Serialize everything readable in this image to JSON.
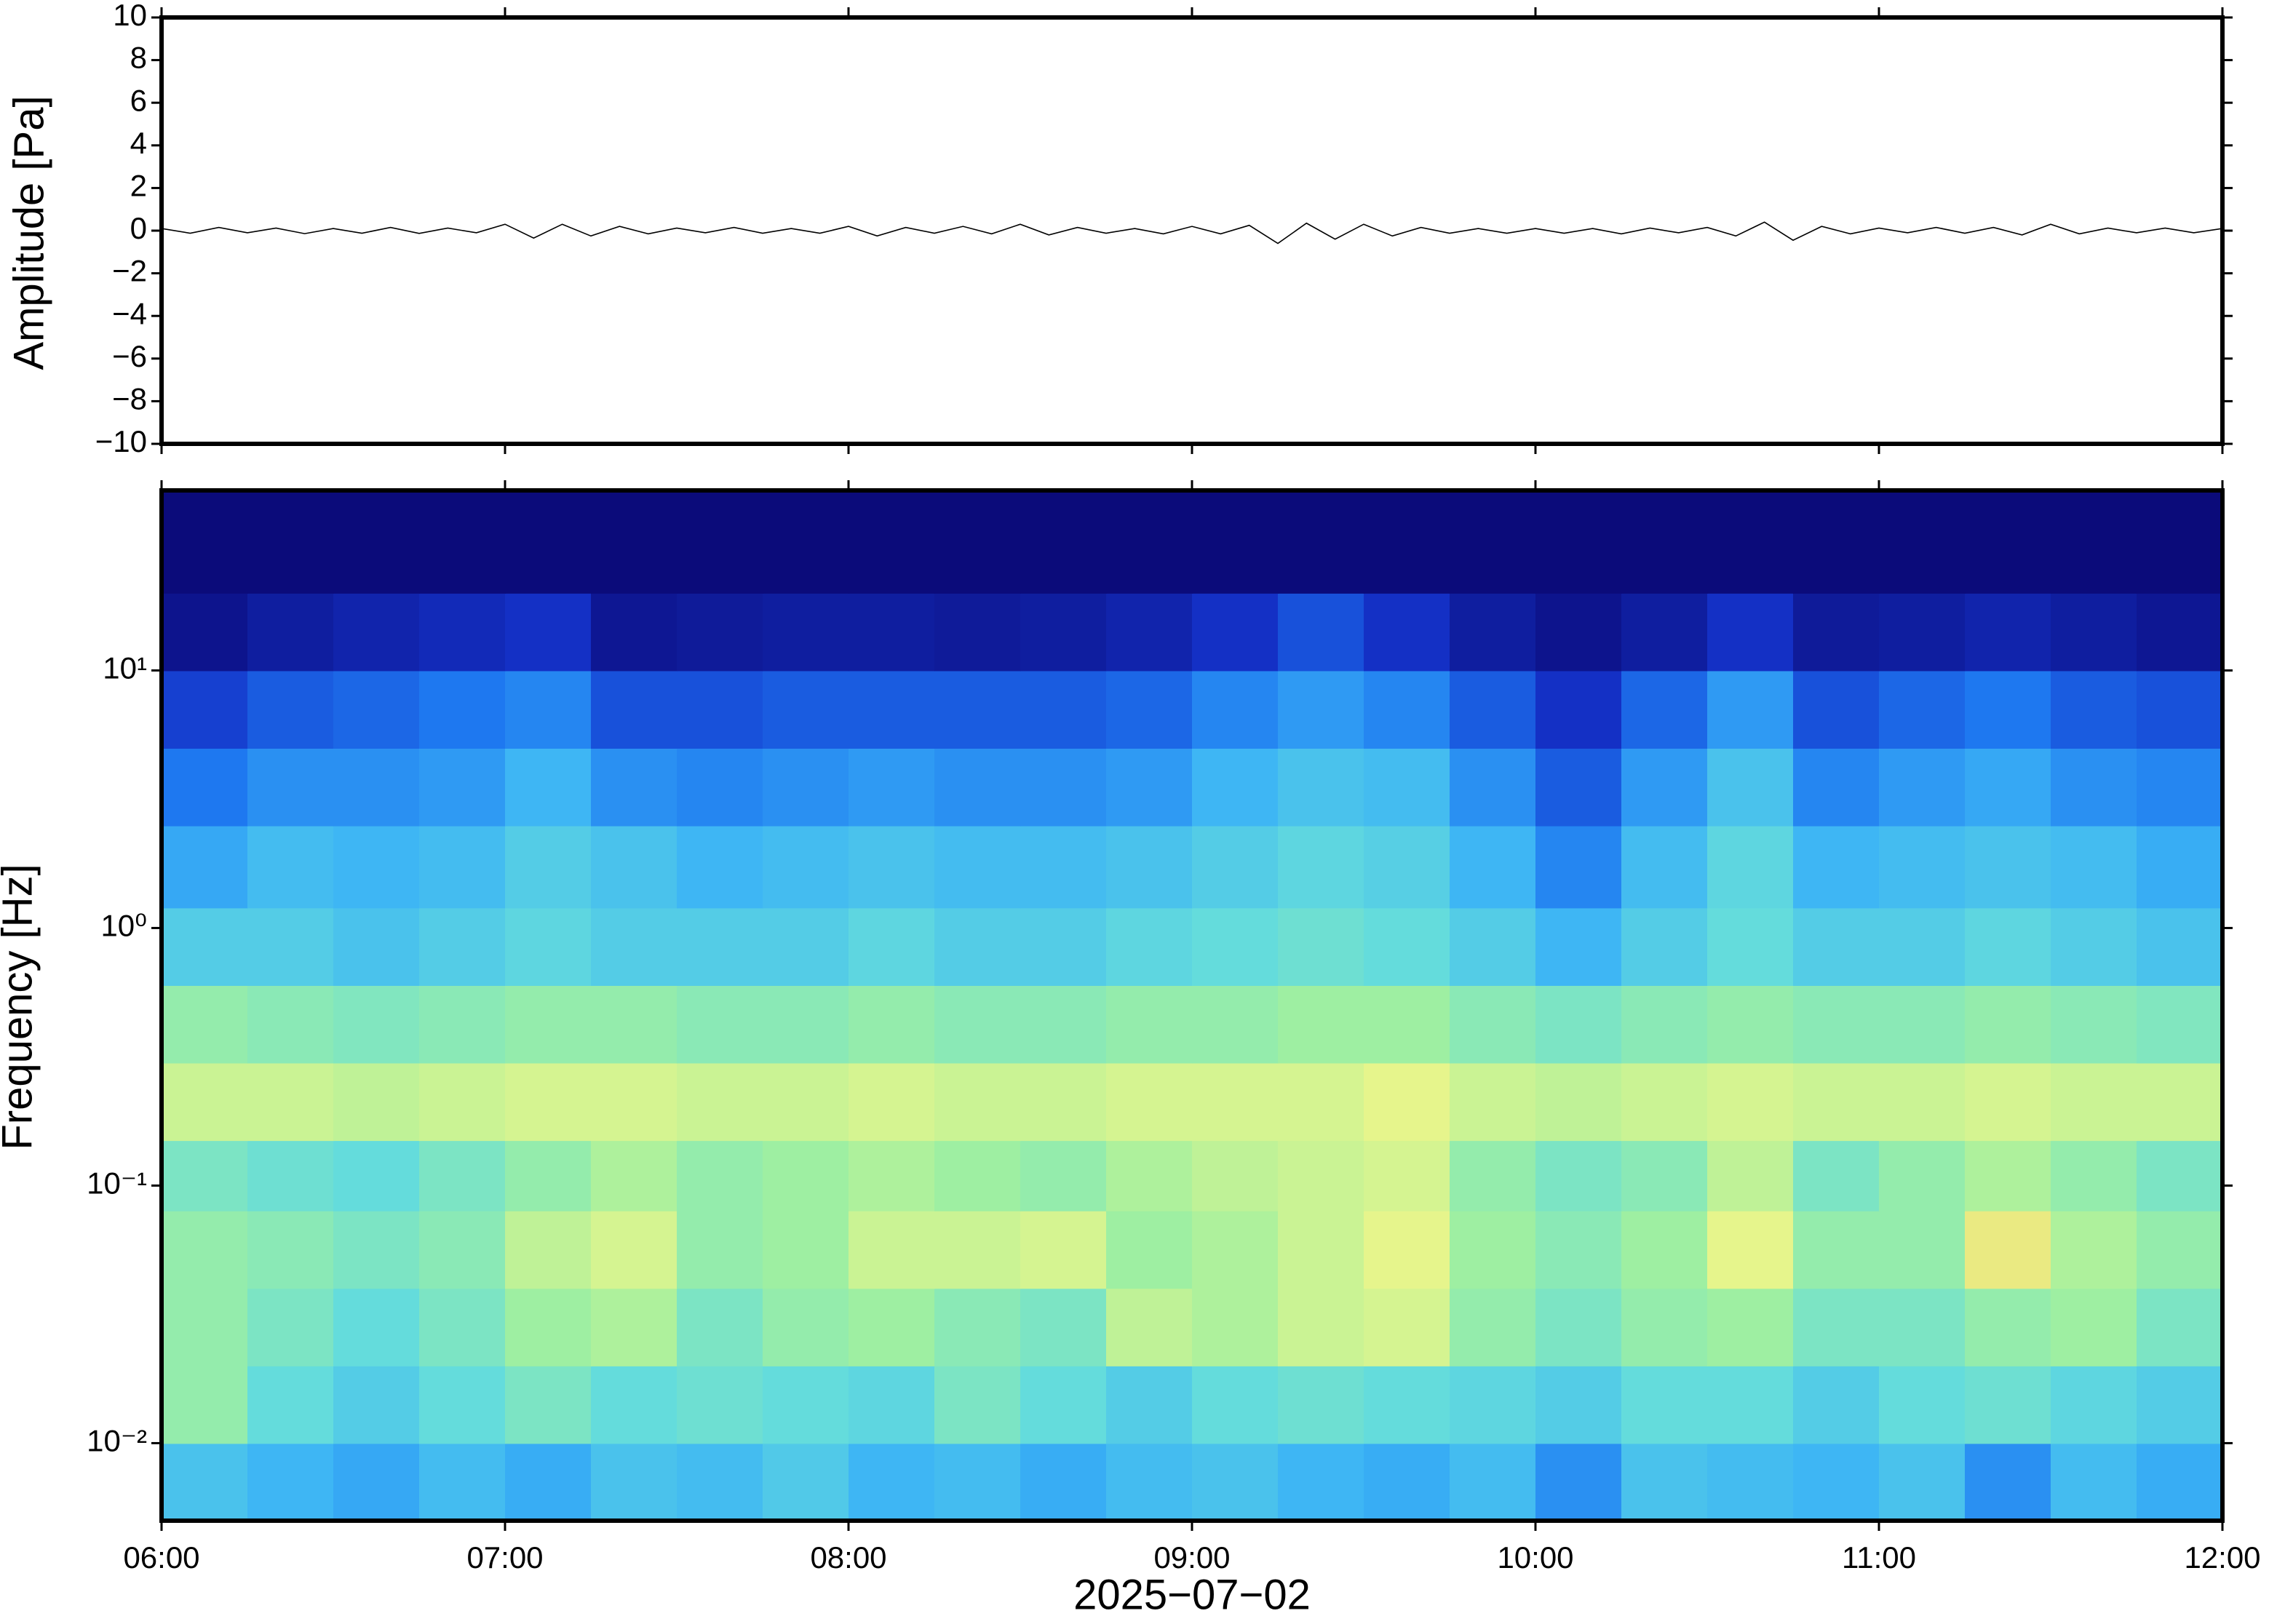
{
  "chart_data": [
    {
      "type": "line",
      "ylabel": "Amplitude [Pa]",
      "x": [
        "06:00",
        "06:05",
        "06:10",
        "06:15",
        "06:20",
        "06:25",
        "06:30",
        "06:35",
        "06:40",
        "06:45",
        "06:50",
        "06:55",
        "07:00",
        "07:05",
        "07:10",
        "07:15",
        "07:20",
        "07:25",
        "07:30",
        "07:35",
        "07:40",
        "07:45",
        "07:50",
        "07:55",
        "08:00",
        "08:05",
        "08:10",
        "08:15",
        "08:20",
        "08:25",
        "08:30",
        "08:35",
        "08:40",
        "08:45",
        "08:50",
        "08:55",
        "09:00",
        "09:05",
        "09:10",
        "09:15",
        "09:20",
        "09:25",
        "09:30",
        "09:35",
        "09:40",
        "09:45",
        "09:50",
        "09:55",
        "10:00",
        "10:05",
        "10:10",
        "10:15",
        "10:20",
        "10:25",
        "10:30",
        "10:35",
        "10:40",
        "10:45",
        "10:50",
        "10:55",
        "11:00",
        "11:05",
        "11:10",
        "11:15",
        "11:20",
        "11:25",
        "11:30",
        "11:35",
        "11:40",
        "11:45",
        "11:50",
        "11:55",
        "12:00"
      ],
      "series": [
        {
          "color": "#000000",
          "values": [
            0.1,
            -0.12,
            0.15,
            -0.1,
            0.12,
            -0.14,
            0.1,
            -0.12,
            0.15,
            -0.13,
            0.12,
            -0.1,
            0.3,
            -0.35,
            0.3,
            -0.25,
            0.2,
            -0.15,
            0.12,
            -0.1,
            0.15,
            -0.12,
            0.1,
            -0.12,
            0.2,
            -0.25,
            0.15,
            -0.12,
            0.2,
            -0.15,
            0.3,
            -0.2,
            0.15,
            -0.12,
            0.1,
            -0.15,
            0.2,
            -0.15,
            0.25,
            -0.6,
            0.35,
            -0.4,
            0.3,
            -0.25,
            0.15,
            -0.12,
            0.1,
            -0.12,
            0.1,
            -0.12,
            0.1,
            -0.15,
            0.12,
            -0.1,
            0.15,
            -0.25,
            0.4,
            -0.45,
            0.2,
            -0.15,
            0.12,
            -0.1,
            0.15,
            -0.12,
            0.15,
            -0.2,
            0.3,
            -0.15,
            0.12,
            -0.1,
            0.12,
            -0.1,
            0.1
          ]
        }
      ],
      "xlim": [
        "06:00",
        "12:00"
      ],
      "ylim": [
        -10,
        10
      ],
      "yticks": [
        {
          "value": -10,
          "label": "−10"
        },
        {
          "value": -8,
          "label": "−8"
        },
        {
          "value": -6,
          "label": "−6"
        },
        {
          "value": -4,
          "label": "−4"
        },
        {
          "value": -2,
          "label": "−2"
        },
        0,
        2,
        4,
        6,
        8,
        10
      ]
    },
    {
      "type": "heatmap",
      "ylabel": "Frequency [Hz]",
      "xlabel": "2025−07−02",
      "log_y": true,
      "xlim": [
        "06:00",
        "12:00"
      ],
      "xticks": [
        "06:00",
        "07:00",
        "08:00",
        "09:00",
        "10:00",
        "11:00",
        "12:00"
      ],
      "ylim": [
        0.005,
        50
      ],
      "yticks": [
        {
          "value": 0.01,
          "label": "10⁻²"
        },
        {
          "value": 0.1,
          "label": "10⁻¹"
        },
        {
          "value": 1,
          "label": "10⁰"
        },
        {
          "value": 10,
          "label": "10¹"
        }
      ],
      "x_bins": [
        "06:00",
        "06:15",
        "06:30",
        "06:45",
        "07:00",
        "07:15",
        "07:30",
        "07:45",
        "08:00",
        "08:15",
        "08:30",
        "08:45",
        "09:00",
        "09:15",
        "09:30",
        "09:45",
        "10:00",
        "10:15",
        "10:30",
        "10:45",
        "11:00",
        "11:15",
        "11:30",
        "11:45",
        "12:00"
      ],
      "y_bins": [
        0.005,
        0.01,
        0.02,
        0.04,
        0.08,
        0.15,
        0.3,
        0.6,
        1.2,
        2.5,
        5,
        10,
        20,
        50
      ],
      "zlim": [
        0,
        1
      ],
      "colormap": [
        "#0b0b7a",
        "#1432c8",
        "#1e78f0",
        "#3cb4f5",
        "#64dcdc",
        "#a0f0a0",
        "#e6f58c",
        "#f5c864",
        "#f08c3c"
      ],
      "z": [
        [
          0.42,
          0.38,
          0.35,
          0.4,
          0.36,
          0.42,
          0.4,
          0.44,
          0.38,
          0.4,
          0.36,
          0.4,
          0.42,
          0.38,
          0.36,
          0.4,
          0.3,
          0.42,
          0.4,
          0.38,
          0.42,
          0.3,
          0.4,
          0.36
        ],
        [
          0.6,
          0.5,
          0.45,
          0.5,
          0.55,
          0.5,
          0.52,
          0.5,
          0.48,
          0.55,
          0.5,
          0.45,
          0.5,
          0.52,
          0.5,
          0.48,
          0.45,
          0.5,
          0.5,
          0.45,
          0.5,
          0.52,
          0.48,
          0.45
        ],
        [
          0.6,
          0.55,
          0.5,
          0.55,
          0.62,
          0.65,
          0.55,
          0.6,
          0.62,
          0.58,
          0.55,
          0.68,
          0.65,
          0.7,
          0.72,
          0.6,
          0.55,
          0.6,
          0.62,
          0.55,
          0.55,
          0.6,
          0.62,
          0.55
        ],
        [
          0.6,
          0.58,
          0.55,
          0.58,
          0.68,
          0.72,
          0.6,
          0.62,
          0.7,
          0.7,
          0.72,
          0.62,
          0.65,
          0.7,
          0.75,
          0.62,
          0.58,
          0.62,
          0.75,
          0.6,
          0.6,
          0.78,
          0.65,
          0.6
        ],
        [
          0.55,
          0.52,
          0.5,
          0.55,
          0.6,
          0.65,
          0.6,
          0.62,
          0.65,
          0.62,
          0.6,
          0.65,
          0.68,
          0.7,
          0.72,
          0.6,
          0.55,
          0.58,
          0.68,
          0.55,
          0.6,
          0.65,
          0.6,
          0.55
        ],
        [
          0.7,
          0.7,
          0.68,
          0.7,
          0.72,
          0.72,
          0.7,
          0.7,
          0.72,
          0.7,
          0.7,
          0.72,
          0.72,
          0.72,
          0.75,
          0.7,
          0.68,
          0.7,
          0.72,
          0.7,
          0.7,
          0.72,
          0.7,
          0.7
        ],
        [
          0.6,
          0.58,
          0.56,
          0.58,
          0.6,
          0.6,
          0.58,
          0.58,
          0.6,
          0.58,
          0.58,
          0.6,
          0.6,
          0.62,
          0.62,
          0.58,
          0.55,
          0.58,
          0.6,
          0.58,
          0.58,
          0.6,
          0.58,
          0.56
        ],
        [
          0.45,
          0.45,
          0.42,
          0.45,
          0.48,
          0.45,
          0.45,
          0.45,
          0.48,
          0.45,
          0.45,
          0.48,
          0.5,
          0.52,
          0.5,
          0.45,
          0.38,
          0.45,
          0.5,
          0.45,
          0.45,
          0.48,
          0.45,
          0.42
        ],
        [
          0.35,
          0.4,
          0.38,
          0.4,
          0.45,
          0.42,
          0.38,
          0.4,
          0.42,
          0.4,
          0.4,
          0.42,
          0.45,
          0.48,
          0.46,
          0.38,
          0.28,
          0.4,
          0.48,
          0.38,
          0.4,
          0.42,
          0.4,
          0.36
        ],
        [
          0.25,
          0.3,
          0.3,
          0.32,
          0.38,
          0.3,
          0.28,
          0.3,
          0.32,
          0.3,
          0.3,
          0.32,
          0.38,
          0.42,
          0.4,
          0.3,
          0.2,
          0.32,
          0.42,
          0.28,
          0.32,
          0.35,
          0.3,
          0.28
        ],
        [
          0.15,
          0.2,
          0.22,
          0.25,
          0.28,
          0.18,
          0.18,
          0.2,
          0.2,
          0.2,
          0.2,
          0.22,
          0.28,
          0.32,
          0.28,
          0.2,
          0.12,
          0.22,
          0.32,
          0.18,
          0.22,
          0.25,
          0.2,
          0.18
        ],
        [
          0.03,
          0.06,
          0.08,
          0.1,
          0.12,
          0.04,
          0.05,
          0.06,
          0.06,
          0.05,
          0.06,
          0.08,
          0.12,
          0.18,
          0.12,
          0.06,
          0.03,
          0.06,
          0.12,
          0.05,
          0.06,
          0.08,
          0.06,
          0.04
        ],
        [
          0,
          0,
          0,
          0,
          0,
          0,
          0,
          0,
          0,
          0,
          0,
          0,
          0,
          0,
          0,
          0,
          0,
          0,
          0,
          0,
          0,
          0,
          0,
          0
        ]
      ]
    }
  ]
}
